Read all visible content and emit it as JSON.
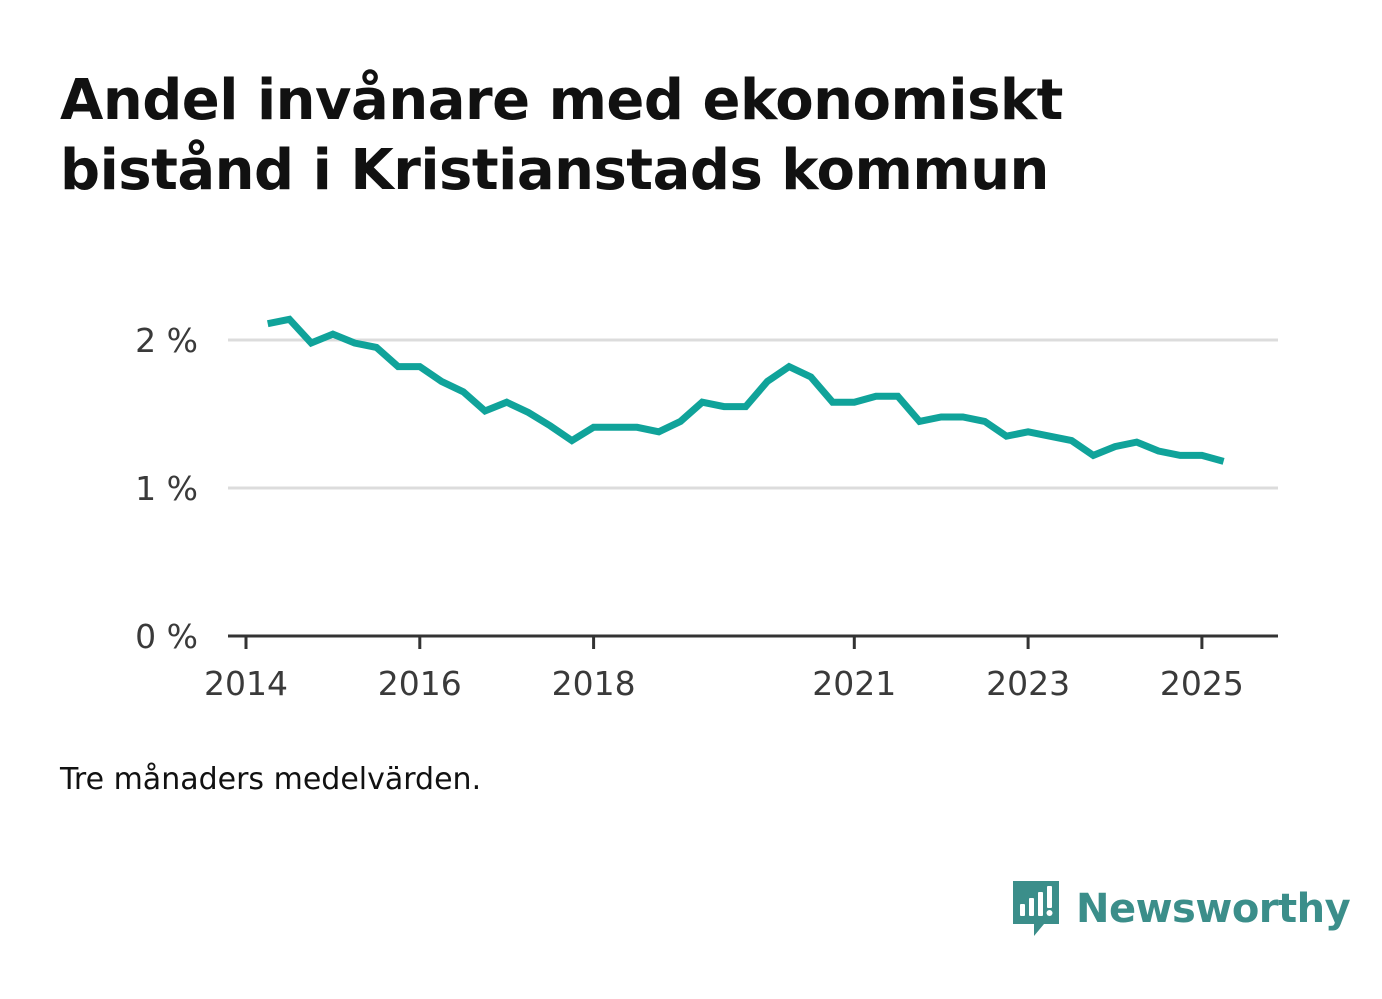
{
  "title": "Andel invånare med ekonomiskt bistånd i Kristianstads kommun",
  "note": "Tre månaders medelvärden.",
  "brand": {
    "name": "Newsworthy",
    "icon": "newsworthy-logo-icon",
    "color": "#3b8e8a"
  },
  "chart_data": {
    "type": "line",
    "title": "Andel invånare med ekonomiskt bistånd i Kristianstads kommun",
    "xlabel": "",
    "ylabel": "",
    "ylim": [
      0,
      2.3
    ],
    "xlim": [
      2013.92,
      2026.0
    ],
    "grid": true,
    "y_ticks": [
      {
        "value": 0,
        "label": "0 %"
      },
      {
        "value": 1,
        "label": "1 %"
      },
      {
        "value": 2,
        "label": "2 %"
      }
    ],
    "x_ticks": [
      {
        "value": 2014,
        "label": "2014"
      },
      {
        "value": 2016,
        "label": "2016"
      },
      {
        "value": 2018,
        "label": "2018"
      },
      {
        "value": 2021,
        "label": "2021"
      },
      {
        "value": 2023,
        "label": "2023"
      },
      {
        "value": 2025,
        "label": "2025"
      }
    ],
    "color": "#10a39a",
    "series": [
      {
        "x": [
          2014.25,
          2014.5,
          2014.75,
          2015.0,
          2015.25,
          2015.5,
          2015.75,
          2016.0,
          2016.25,
          2016.5,
          2016.75,
          2017.0,
          2017.25,
          2017.5,
          2017.75,
          2018.0,
          2018.25,
          2018.5,
          2018.75,
          2019.0,
          2019.25,
          2019.5,
          2019.75,
          2020.0,
          2020.25,
          2020.5,
          2020.75,
          2021.0,
          2021.25,
          2021.5,
          2021.75,
          2022.0,
          2022.25,
          2022.5,
          2022.75,
          2023.0,
          2023.25,
          2023.5,
          2023.75,
          2024.0,
          2024.25,
          2024.5,
          2024.75,
          2025.0,
          2025.25
        ],
        "values": [
          2.11,
          2.14,
          1.98,
          2.04,
          1.98,
          1.95,
          1.82,
          1.82,
          1.72,
          1.65,
          1.52,
          1.58,
          1.51,
          1.42,
          1.32,
          1.41,
          1.41,
          1.41,
          1.38,
          1.45,
          1.58,
          1.55,
          1.55,
          1.72,
          1.82,
          1.75,
          1.58,
          1.58,
          1.62,
          1.62,
          1.45,
          1.48,
          1.48,
          1.45,
          1.35,
          1.38,
          1.35,
          1.32,
          1.22,
          1.28,
          1.31,
          1.25,
          1.22,
          1.22,
          1.18
        ]
      }
    ]
  }
}
